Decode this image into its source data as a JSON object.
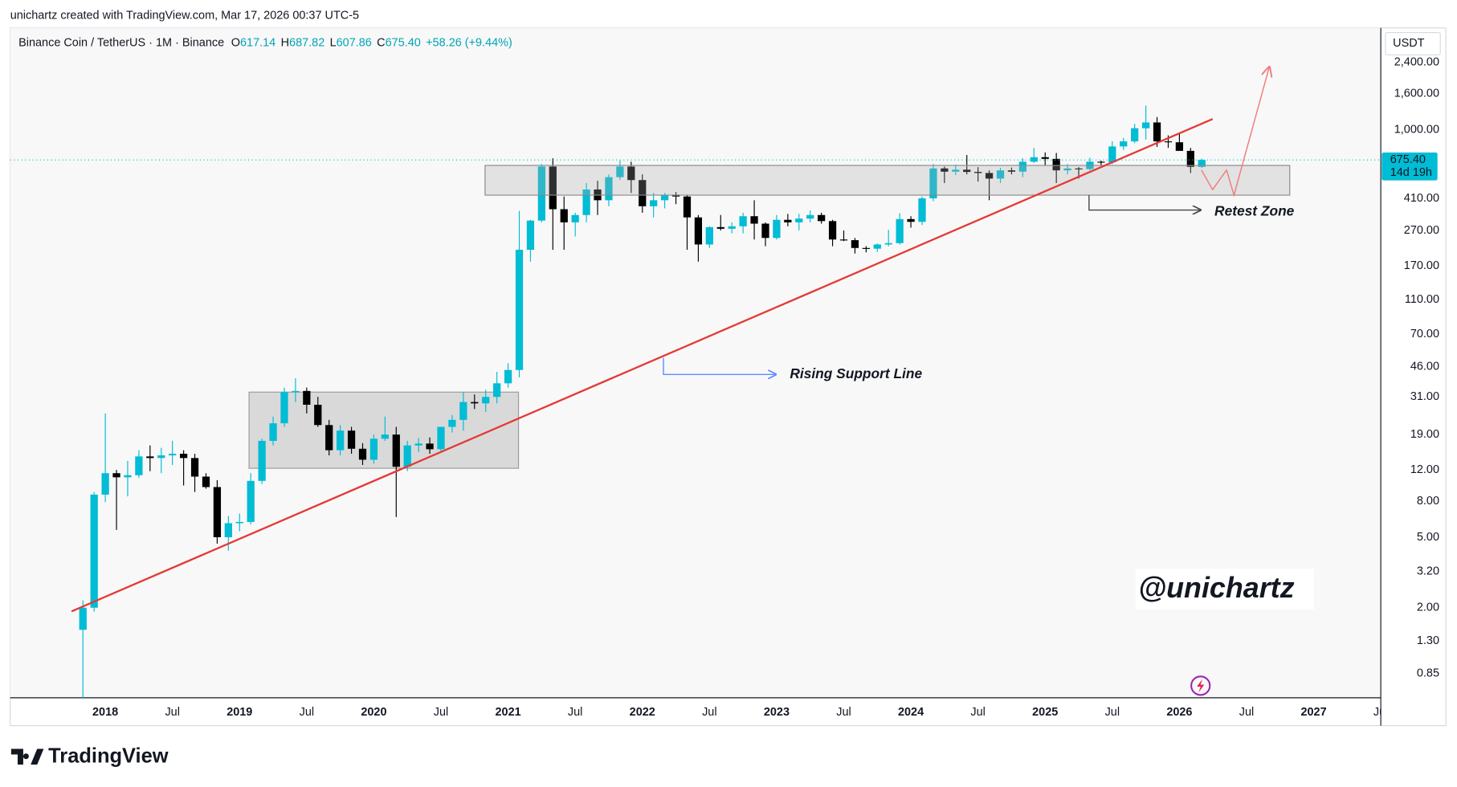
{
  "header": {
    "credit": "unichartz created with TradingView.com, Mar 17, 2026 00:37 UTC-5",
    "symbol": "Binance Coin / TetherUS · 1M · Binance",
    "open_label": "O",
    "open": "617.14",
    "high_label": "H",
    "high": "687.82",
    "low_label": "L",
    "low": "607.86",
    "close_label": "C",
    "close": "675.40",
    "change": "+58.26 (+9.44%)"
  },
  "chart_data": {
    "type": "candlestick",
    "currency": "USDT",
    "log_scale": true,
    "grid": false,
    "up_color": "#00bcd4",
    "down_color": "#000000",
    "x": [
      "2017-11",
      "2017-12",
      "2018-01",
      "2018-02",
      "2018-03",
      "2018-04",
      "2018-05",
      "2018-06",
      "2018-07",
      "2018-08",
      "2018-09",
      "2018-10",
      "2018-11",
      "2018-12",
      "2019-01",
      "2019-02",
      "2019-03",
      "2019-04",
      "2019-05",
      "2019-06",
      "2019-07",
      "2019-08",
      "2019-09",
      "2019-10",
      "2019-11",
      "2019-12",
      "2020-01",
      "2020-02",
      "2020-03",
      "2020-04",
      "2020-05",
      "2020-06",
      "2020-07",
      "2020-08",
      "2020-09",
      "2020-10",
      "2020-11",
      "2020-12",
      "2021-01",
      "2021-02",
      "2021-03",
      "2021-04",
      "2021-05",
      "2021-06",
      "2021-07",
      "2021-08",
      "2021-09",
      "2021-10",
      "2021-11",
      "2021-12",
      "2022-01",
      "2022-02",
      "2022-03",
      "2022-04",
      "2022-05",
      "2022-06",
      "2022-07",
      "2022-08",
      "2022-09",
      "2022-10",
      "2022-11",
      "2022-12",
      "2023-01",
      "2023-02",
      "2023-03",
      "2023-04",
      "2023-05",
      "2023-06",
      "2023-07",
      "2023-08",
      "2023-09",
      "2023-10",
      "2023-11",
      "2023-12",
      "2024-01",
      "2024-02",
      "2024-03",
      "2024-04",
      "2024-05",
      "2024-06",
      "2024-07",
      "2024-08",
      "2024-09",
      "2024-10",
      "2024-11",
      "2024-12",
      "2025-01",
      "2025-02",
      "2025-03",
      "2025-04",
      "2025-05",
      "2025-06",
      "2025-07",
      "2025-08",
      "2025-09",
      "2025-10",
      "2025-11",
      "2025-12",
      "2026-01",
      "2026-02",
      "2026-03"
    ],
    "open": [
      1.5,
      2.0,
      8.7,
      11.5,
      10.9,
      11.2,
      14.3,
      14.0,
      14.5,
      14.8,
      14.0,
      11.0,
      9.6,
      5.0,
      6.0,
      6.1,
      10.4,
      17.5,
      22,
      33,
      33.5,
      28,
      21.5,
      15.5,
      20,
      15.8,
      13.7,
      18,
      19,
      12.5,
      16.5,
      16.9,
      15.7,
      21,
      23,
      29,
      28.5,
      31,
      37,
      44,
      210,
      307,
      620,
      356,
      300,
      330,
      460,
      400,
      540,
      620,
      520,
      370,
      400,
      430,
      420,
      320,
      225,
      282,
      276,
      285,
      325,
      295,
      245,
      310,
      300,
      315,
      330,
      305,
      240,
      238,
      215,
      213,
      225,
      229,
      313,
      302,
      410,
      605,
      580,
      595,
      578,
      570,
      530,
      590,
      580,
      660,
      700,
      685,
      590,
      605,
      600,
      660,
      655,
      805,
      860,
      1020,
      1100,
      860,
      850,
      760,
      617.14
    ],
    "high": [
      2.2,
      9.0,
      25,
      12.0,
      13.5,
      15.5,
      16.5,
      16.0,
      17.5,
      15.5,
      14.8,
      11.5,
      10.5,
      6.6,
      6.8,
      11.5,
      18,
      24,
      35,
      39.5,
      35,
      31,
      23,
      21.5,
      21,
      17,
      19,
      24,
      21,
      17.5,
      18.2,
      18.3,
      21,
      24.5,
      33,
      32,
      34,
      43,
      48,
      348,
      310,
      640,
      690,
      420,
      340,
      500,
      515,
      560,
      670,
      660,
      560,
      440,
      440,
      445,
      430,
      330,
      285,
      330,
      300,
      340,
      400,
      300,
      330,
      335,
      335,
      350,
      340,
      310,
      270,
      245,
      220,
      228,
      272,
      338,
      325,
      420,
      640,
      620,
      635,
      720,
      615,
      590,
      610,
      612,
      690,
      790,
      745,
      740,
      640,
      615,
      695,
      670,
      860,
      900,
      1080,
      1370,
      1180,
      930,
      960,
      790,
      687.82
    ],
    "low": [
      0.55,
      1.9,
      7.9,
      5.5,
      8.5,
      10.8,
      11.8,
      11.5,
      12.8,
      9.8,
      9.0,
      9.4,
      4.6,
      4.2,
      5.4,
      5.9,
      10,
      16.5,
      21,
      29,
      25,
      21,
      14.5,
      14.5,
      14.8,
      12.8,
      13,
      17.5,
      6.5,
      11.8,
      15.1,
      14.8,
      15.3,
      19.5,
      20,
      26.5,
      25.5,
      28.5,
      35,
      40,
      180,
      300,
      210,
      210,
      250,
      300,
      330,
      370,
      520,
      440,
      340,
      320,
      360,
      380,
      210,
      180,
      215,
      270,
      260,
      260,
      240,
      220,
      240,
      285,
      270,
      300,
      295,
      220,
      235,
      200,
      203,
      204,
      220,
      225,
      280,
      290,
      395,
      500,
      555,
      560,
      510,
      400,
      500,
      560,
      540,
      650,
      630,
      500,
      560,
      530,
      590,
      630,
      640,
      770,
      840,
      880,
      800,
      790,
      780,
      570,
      607.86
    ],
    "close": [
      2.0,
      8.7,
      11.5,
      10.9,
      11.2,
      14.3,
      14.0,
      14.5,
      14.8,
      14.0,
      11.0,
      9.6,
      5.0,
      6.0,
      6.1,
      10.4,
      17.5,
      22,
      33,
      33.5,
      28,
      21.5,
      15.5,
      20,
      15.8,
      13.7,
      18,
      19,
      12.5,
      16.5,
      16.9,
      15.7,
      21,
      23,
      29,
      28.5,
      31,
      37,
      44,
      210,
      307,
      620,
      356,
      300,
      330,
      460,
      400,
      540,
      620,
      520,
      370,
      400,
      430,
      420,
      320,
      225,
      282,
      276,
      285,
      325,
      295,
      245,
      310,
      300,
      315,
      330,
      305,
      240,
      238,
      215,
      213,
      225,
      229,
      313,
      302,
      410,
      605,
      580,
      595,
      578,
      570,
      530,
      590,
      580,
      660,
      700,
      685,
      590,
      605,
      600,
      660,
      655,
      805,
      860,
      1020,
      1100,
      860,
      850,
      760,
      617.14,
      675.4
    ],
    "xlim": [
      "2017-05",
      "2027-07"
    ],
    "xticks": [
      {
        "value": "2018-01",
        "label": "2018"
      },
      {
        "value": "2018-07",
        "label": "Jul"
      },
      {
        "value": "2019-01",
        "label": "2019"
      },
      {
        "value": "2019-07",
        "label": "Jul"
      },
      {
        "value": "2020-01",
        "label": "2020"
      },
      {
        "value": "2020-07",
        "label": "Jul"
      },
      {
        "value": "2021-01",
        "label": "2021"
      },
      {
        "value": "2021-07",
        "label": "Jul"
      },
      {
        "value": "2022-01",
        "label": "2022"
      },
      {
        "value": "2022-07",
        "label": "Jul"
      },
      {
        "value": "2023-01",
        "label": "2023"
      },
      {
        "value": "2023-07",
        "label": "Jul"
      },
      {
        "value": "2024-01",
        "label": "2024"
      },
      {
        "value": "2024-07",
        "label": "Jul"
      },
      {
        "value": "2025-01",
        "label": "2025"
      },
      {
        "value": "2025-07",
        "label": "Jul"
      },
      {
        "value": "2026-01",
        "label": "2026"
      },
      {
        "value": "2026-07",
        "label": "Jul"
      },
      {
        "value": "2027-01",
        "label": "2027"
      },
      {
        "value": "2027-07",
        "label": "Jul"
      }
    ],
    "ylim": [
      0.62,
      3760
    ],
    "yticks": [
      0.85,
      {
        "value": 1.3,
        "label": "1.30"
      },
      {
        "value": 2,
        "label": "2.00"
      },
      {
        "value": 3.2,
        "label": "3.20"
      },
      {
        "value": 5,
        "label": "5.00"
      },
      {
        "value": 8,
        "label": "8.00"
      },
      {
        "value": 12,
        "label": "12.00"
      },
      {
        "value": 19,
        "label": "19.00"
      },
      {
        "value": 31,
        "label": "31.00"
      },
      {
        "value": 46,
        "label": "46.00"
      },
      {
        "value": 70,
        "label": "70.00"
      },
      {
        "value": 110,
        "label": "110.00"
      },
      {
        "value": 170,
        "label": "170.00"
      },
      {
        "value": 270,
        "label": "270.00"
      },
      {
        "value": 410,
        "label": "410.00"
      },
      {
        "value": 1000,
        "label": "1,000.00"
      },
      {
        "value": 1600,
        "label": "1,600.00"
      },
      {
        "value": 2400,
        "label": "2,400.00"
      }
    ],
    "last_price": {
      "value": 675.4,
      "label": "675.40",
      "countdown": "14d 19h"
    },
    "annotations": {
      "support": "Rising Support Line",
      "retest": "Retest Zone",
      "watermark": "@unichartz"
    }
  },
  "footer": {
    "brand": "TradingView"
  }
}
